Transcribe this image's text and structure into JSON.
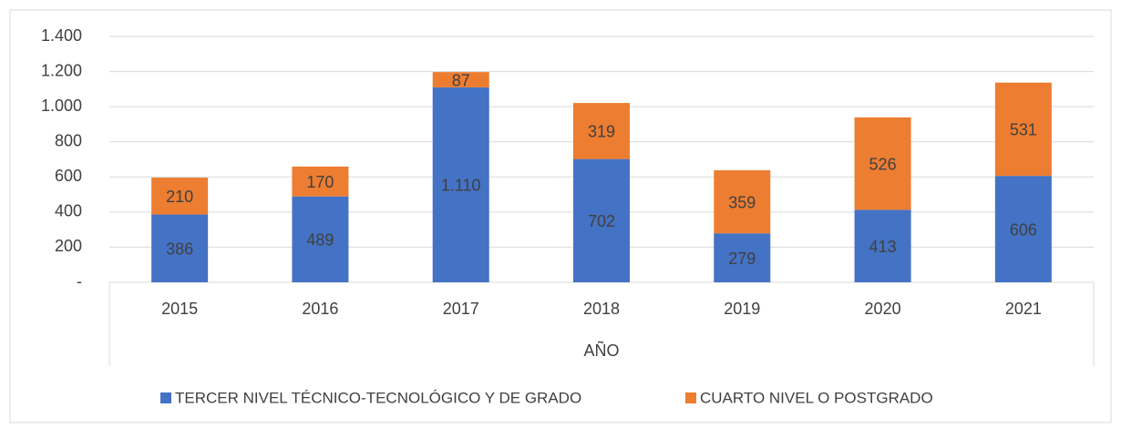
{
  "chart_data": {
    "type": "stacked_bar",
    "categories": [
      "2015",
      "2016",
      "2017",
      "2018",
      "2019",
      "2020",
      "2021"
    ],
    "series": [
      {
        "name": "TERCER NIVEL TÉCNICO-TECNOLÓGICO Y DE GRADO",
        "color": "#4472c4",
        "values": [
          386,
          489,
          1110,
          702,
          279,
          413,
          606
        ],
        "value_labels": [
          "386",
          "489",
          "1.110",
          "702",
          "279",
          "413",
          "606"
        ]
      },
      {
        "name": "CUARTO NIVEL O POSTGRADO",
        "color": "#ed7d31",
        "values": [
          210,
          170,
          87,
          319,
          359,
          526,
          531
        ]
      }
    ],
    "xlabel": "AÑO",
    "ylim": [
      0,
      1400
    ],
    "yticks": [
      {
        "value": 0,
        "label": "-"
      },
      200,
      400,
      600,
      800,
      {
        "value": 1000,
        "label": "1.000"
      },
      {
        "value": 1200,
        "label": "1.200"
      },
      {
        "value": 1400,
        "label": "1.400"
      }
    ],
    "grid": true,
    "legend": "bottom"
  }
}
